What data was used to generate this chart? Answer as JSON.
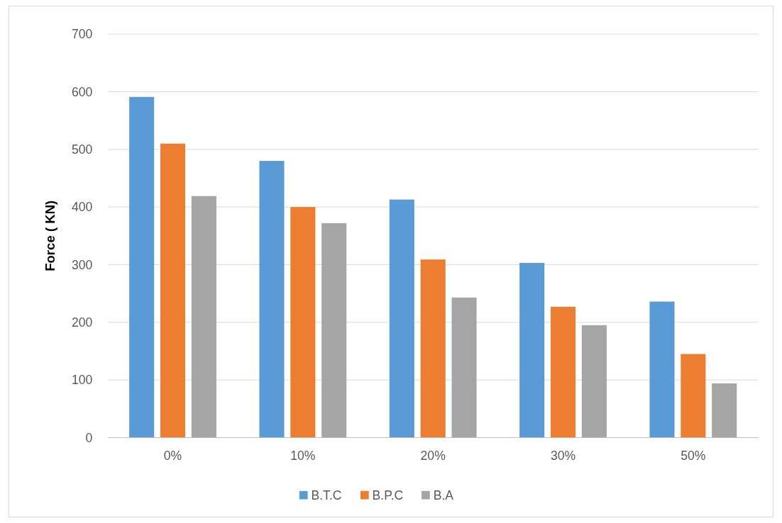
{
  "chart_data": {
    "type": "bar",
    "ylabel": "Force ( KN)",
    "categories": [
      "0%",
      "10%",
      "20%",
      "30%",
      "50%"
    ],
    "series": [
      {
        "name": "B.T.C",
        "color": "#5b9bd5",
        "values": [
          591,
          480,
          413,
          303,
          236
        ]
      },
      {
        "name": "B.P.C",
        "color": "#ed7d31",
        "values": [
          510,
          400,
          309,
          227,
          145
        ]
      },
      {
        "name": "B.A",
        "color": "#a5a5a5",
        "values": [
          419,
          372,
          243,
          195,
          94
        ]
      }
    ],
    "ylim": [
      0,
      700
    ],
    "yticks": [
      0,
      100,
      200,
      300,
      400,
      500,
      600,
      700
    ],
    "grid": "y",
    "legend": "bottom"
  }
}
